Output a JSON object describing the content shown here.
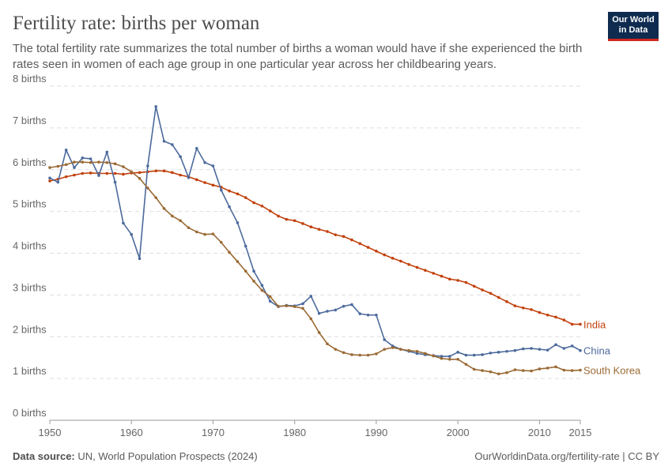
{
  "header": {
    "title": "Fertility rate: births per woman",
    "subtitle": "The total fertility rate summarizes the total number of births a woman would have if she experienced the birth rates seen in women of each age group in one particular year across her childbearing years.",
    "logo": "Our World in Data"
  },
  "footer": {
    "source_label": "Data source:",
    "source": "UN, World Population Prospects (2024)",
    "link": "OurWorldinData.org/fertility-rate | CC BY"
  },
  "chart_data": {
    "type": "line",
    "title": "Fertility rate: births per woman",
    "xlabel": "",
    "ylabel": "",
    "xlim": [
      1950,
      2015
    ],
    "ylim": [
      0,
      8
    ],
    "grid": "horizontal dashed",
    "legend": "inline line-end labels",
    "x_ticks": [
      1950,
      1960,
      1970,
      1980,
      1990,
      2000,
      2010,
      2015
    ],
    "x_tick_labels": [
      "1950",
      "1960",
      "1970",
      "1980",
      "1990",
      "2000",
      "2010",
      "2015"
    ],
    "y_ticks": [
      0,
      1,
      2,
      3,
      4,
      5,
      6,
      7,
      8
    ],
    "y_tick_labels": [
      "0 births",
      "1 births",
      "2 births",
      "3 births",
      "4 births",
      "5 births",
      "6 births",
      "7 births",
      "8 births"
    ],
    "x_start": 1950,
    "series": [
      {
        "name": "India",
        "color": "#c2410c",
        "values": [
          5.73,
          5.77,
          5.83,
          5.87,
          5.91,
          5.92,
          5.91,
          5.91,
          5.91,
          5.89,
          5.92,
          5.93,
          5.95,
          5.97,
          5.97,
          5.93,
          5.87,
          5.83,
          5.76,
          5.69,
          5.63,
          5.58,
          5.49,
          5.42,
          5.33,
          5.21,
          5.13,
          5.01,
          4.89,
          4.81,
          4.78,
          4.71,
          4.63,
          4.57,
          4.52,
          4.44,
          4.4,
          4.32,
          4.23,
          4.14,
          4.05,
          3.96,
          3.88,
          3.81,
          3.73,
          3.66,
          3.59,
          3.52,
          3.45,
          3.38,
          3.35,
          3.3,
          3.21,
          3.12,
          3.04,
          2.94,
          2.84,
          2.74,
          2.69,
          2.65,
          2.58,
          2.52,
          2.47,
          2.4,
          2.3,
          2.3
        ]
      },
      {
        "name": "China",
        "color": "#4c6a9c",
        "values": [
          5.8,
          5.7,
          6.47,
          6.05,
          6.28,
          6.26,
          5.86,
          6.42,
          5.7,
          4.72,
          4.45,
          3.87,
          6.09,
          7.51,
          6.68,
          6.6,
          6.31,
          5.81,
          6.51,
          6.17,
          6.09,
          5.51,
          5.11,
          4.73,
          4.17,
          3.57,
          3.23,
          2.85,
          2.72,
          2.75,
          2.74,
          2.79,
          2.97,
          2.56,
          2.61,
          2.64,
          2.73,
          2.77,
          2.55,
          2.52,
          2.52,
          1.93,
          1.78,
          1.7,
          1.65,
          1.6,
          1.57,
          1.55,
          1.53,
          1.53,
          1.63,
          1.56,
          1.56,
          1.57,
          1.61,
          1.63,
          1.65,
          1.67,
          1.71,
          1.72,
          1.7,
          1.68,
          1.81,
          1.72,
          1.78,
          1.67
        ]
      },
      {
        "name": "South Korea",
        "color": "#9a6a35",
        "values": [
          6.05,
          6.08,
          6.12,
          6.18,
          6.18,
          6.17,
          6.18,
          6.17,
          6.14,
          6.07,
          5.95,
          5.79,
          5.56,
          5.33,
          5.07,
          4.89,
          4.78,
          4.61,
          4.51,
          4.45,
          4.46,
          4.26,
          4.02,
          3.8,
          3.57,
          3.33,
          3.11,
          2.96,
          2.73,
          2.74,
          2.72,
          2.68,
          2.43,
          2.1,
          1.83,
          1.7,
          1.62,
          1.57,
          1.56,
          1.56,
          1.59,
          1.7,
          1.74,
          1.7,
          1.67,
          1.65,
          1.6,
          1.54,
          1.48,
          1.46,
          1.46,
          1.34,
          1.22,
          1.19,
          1.16,
          1.11,
          1.14,
          1.21,
          1.19,
          1.18,
          1.23,
          1.25,
          1.28,
          1.2,
          1.19,
          1.2
        ]
      }
    ]
  }
}
